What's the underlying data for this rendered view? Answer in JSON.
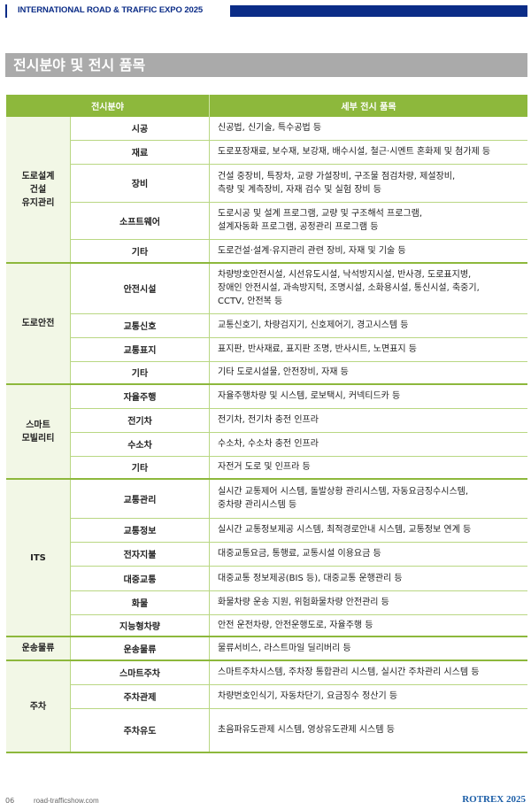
{
  "header": {
    "expo_title": "INTERNATIONAL ROAD & TRAFFIC EXPO 2025"
  },
  "section_title": "전시분야 및 전시 품목",
  "table": {
    "columns": [
      "전시분야",
      "세부 전시 품목"
    ],
    "groups": [
      {
        "category": "도로설계\n건설\n유지관리",
        "rows": [
          {
            "sub": "시공",
            "detail": "신공법, 신기술, 특수공법 등"
          },
          {
            "sub": "재료",
            "detail": "도로포장재료, 보수재, 보강재, 배수시설, 철근·시멘트 혼화제 및 첨가제 등"
          },
          {
            "sub": "장비",
            "detail": "건설 중장비, 특장차, 교량 가설장비, 구조물 점검차량, 제설장비,\n측량 및 계측장비, 자재 검수 및 실험 장비 등"
          },
          {
            "sub": "소프트웨어",
            "detail": "도로시공 및 설계 프로그램, 교량 및 구조해석 프로그램,\n설계자동화 프로그램, 공정관리 프로그램 등"
          },
          {
            "sub": "기타",
            "detail": "도로건설·설계·유지관리 관련 장비, 자재 및 기술 등"
          }
        ]
      },
      {
        "category": "도로안전",
        "rows": [
          {
            "sub": "안전시설",
            "detail": "차량방호안전시설, 시선유도시설, 낙석방지시설, 반사경, 도로표지병,\n장애인 안전시설, 과속방지턱, 조명시설, 소화용시설, 통신시설, 축중기,\nCCTV, 안전복 등"
          },
          {
            "sub": "교통신호",
            "detail": "교통신호기, 차량검지기, 신호제어기, 경고시스템 등"
          },
          {
            "sub": "교통표지",
            "detail": "표지판, 반사재료, 표지판 조명, 반사시트, 노면표지 등"
          },
          {
            "sub": "기타",
            "detail": "기타 도로시설물, 안전장비, 자재 등"
          }
        ]
      },
      {
        "category": "스마트\n모빌리티",
        "rows": [
          {
            "sub": "자율주행",
            "detail": "자율주행차량 및 시스템, 로보택시, 커넥티드카 등"
          },
          {
            "sub": "전기차",
            "detail": "전기차, 전기차 충전 인프라"
          },
          {
            "sub": "수소차",
            "detail": "수소차, 수소차 충전 인프라"
          },
          {
            "sub": "기타",
            "detail": "자전거 도로 및 인프라 등"
          }
        ]
      },
      {
        "category": "ITS",
        "rows": [
          {
            "sub": "교통관리",
            "detail": "실시간 교통제어 시스템, 돌발상황 관리시스템, 자동요금징수시스템,\n중차량 관리시스템 등"
          },
          {
            "sub": "교통정보",
            "detail": "실시간 교통정보제공 시스템, 최적경로안내 시스템, 교통정보 연계 등"
          },
          {
            "sub": "전자지불",
            "detail": "대중교통요금, 통행료, 교통시설 이용요금 등"
          },
          {
            "sub": "대중교통",
            "detail": "대중교통 정보제공(BIS 등), 대중교통 운행관리 등"
          },
          {
            "sub": "화물",
            "detail": "화물차량 운송 지원, 위험화물차량 안전관리 등"
          },
          {
            "sub": "지능형차량",
            "detail": "안전 운전차량, 안전운행도로, 자율주행 등"
          }
        ]
      },
      {
        "category": "운송물류",
        "rows": [
          {
            "sub": "운송물류",
            "detail": "물류서비스, 라스트마일 딜리버리 등"
          }
        ]
      },
      {
        "category": "주차",
        "rows": [
          {
            "sub": "스마트주차",
            "detail": "스마트주차시스템, 주차장 통합관리 시스템, 실시간 주차관리 시스템 등"
          },
          {
            "sub": "주차관제",
            "detail": "차량번호인식기, 자동차단기, 요금징수 정산기 등"
          },
          {
            "sub": "주차유도",
            "detail": "초음파유도관제 시스템, 영상유도관제 시스템 등"
          }
        ]
      }
    ]
  },
  "footer": {
    "page_number": "06",
    "url": "road-trafficshow.com",
    "logo": "ROTREX 2025"
  },
  "colors": {
    "navy": "#0b2c87",
    "green": "#8db83c",
    "gray_title": "#aaaaaa"
  }
}
